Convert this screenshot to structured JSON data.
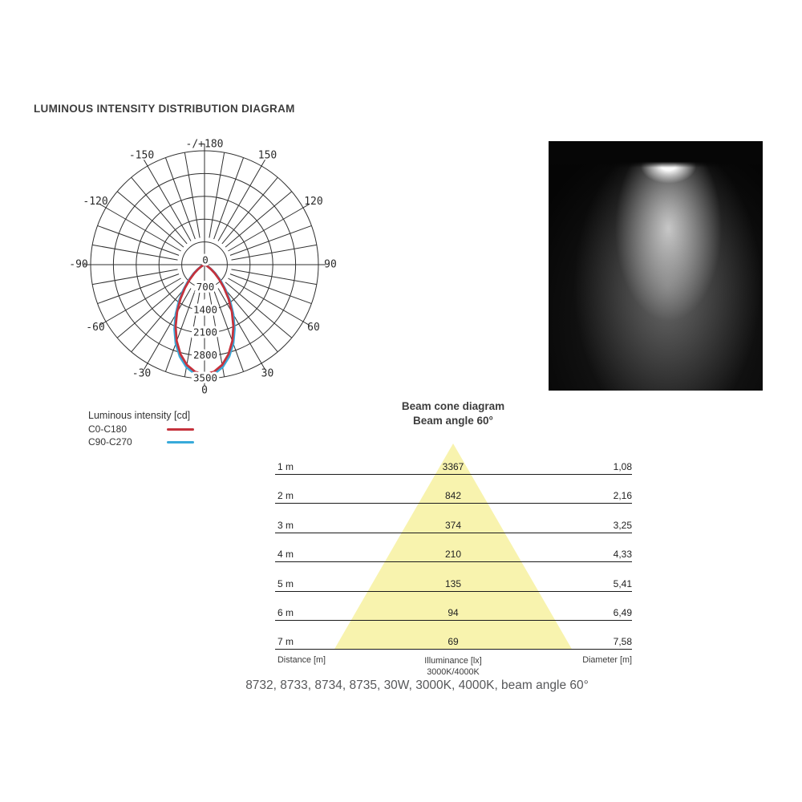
{
  "title": "LUMINOUS INTENSITY DISTRIBUTION DIAGRAM",
  "caption": "8732, 8733, 8734, 8735, 30W, 3000K, 4000K, beam angle 60°",
  "colors": {
    "curve_red": "#c5323c",
    "curve_blue": "#38aada",
    "grid": "#2f2f2f",
    "cone_yellow": "#f8f3ae",
    "line_dark": "#1b1b1b",
    "text_dark": "#3d3d3d",
    "caption_gray": "#57585a"
  },
  "chart_data": [
    {
      "type": "line",
      "name": "luminous-intensity-polar-diagram",
      "coordinate_system": "polar",
      "orientation": "0 degrees points down",
      "grid_angle_step_deg": 10,
      "angle_tick_step_deg": 30,
      "radial_max": 3500,
      "radial_ticks": [
        0,
        700,
        1400,
        2100,
        2800,
        3500
      ],
      "radial_tick_labels": [
        "0",
        "700",
        "1400",
        "2100",
        "2800",
        "3500"
      ],
      "angle_ticks": [
        {
          "angle": 0,
          "label": "0"
        },
        {
          "angle": 30,
          "label": "30"
        },
        {
          "angle": 60,
          "label": "60"
        },
        {
          "angle": 90,
          "label": "90"
        },
        {
          "angle": 120,
          "label": "120"
        },
        {
          "angle": 150,
          "label": "150"
        },
        {
          "angle": 180,
          "label": "-/+180"
        },
        {
          "angle": -30,
          "label": "-30"
        },
        {
          "angle": -60,
          "label": "-60"
        },
        {
          "angle": -90,
          "label": "-90"
        },
        {
          "angle": -120,
          "label": "-120"
        },
        {
          "angle": -150,
          "label": "-150"
        }
      ],
      "legend": {
        "title": "Luminous intensity [cd]",
        "entries": [
          {
            "name": "C0-C180",
            "color": "#c5323c"
          },
          {
            "name": "C90-C270",
            "color": "#38aada"
          }
        ]
      },
      "angles_deg": [
        -90,
        -85,
        -80,
        -75,
        -70,
        -65,
        -60,
        -55,
        -50,
        -45,
        -40,
        -35,
        -30,
        -25,
        -20,
        -15,
        -10,
        -5,
        0,
        5,
        10,
        15,
        20,
        25,
        30,
        35,
        40,
        45,
        50,
        55,
        60,
        65,
        70,
        75,
        80,
        85,
        90
      ],
      "series": [
        {
          "name": "C0-C180",
          "values": [
            0,
            0,
            1,
            5,
            20,
            54,
            121,
            234,
            404,
            638,
            937,
            1292,
            1684,
            2100,
            2498,
            2851,
            3128,
            3306,
            3367,
            3306,
            3128,
            2851,
            2498,
            2100,
            1684,
            1292,
            937,
            638,
            404,
            234,
            121,
            54,
            20,
            5,
            1,
            0,
            0
          ]
        },
        {
          "name": "C90-C270",
          "values": [
            0,
            0,
            2,
            6,
            25,
            65,
            141,
            266,
            449,
            697,
            1006,
            1370,
            1770,
            2182,
            2577,
            2924,
            3197,
            3370,
            3430,
            3370,
            3197,
            2924,
            2577,
            2182,
            1770,
            1370,
            1006,
            697,
            449,
            266,
            141,
            65,
            25,
            6,
            2,
            0,
            0
          ]
        }
      ]
    },
    {
      "type": "table",
      "name": "beam-cone-diagram",
      "title": "Beam cone diagram",
      "subtitle": "Beam angle 60°",
      "beam_angle_deg": 60,
      "columns": {
        "left": "Distance [m]",
        "center": "Illuminance [lx]",
        "center_sub": "3000K/4000K",
        "right": "Diameter [m]"
      },
      "rows": [
        {
          "distance": "1 m",
          "illuminance": "3367",
          "diameter": "1,08"
        },
        {
          "distance": "2 m",
          "illuminance": "842",
          "diameter": "2,16"
        },
        {
          "distance": "3 m",
          "illuminance": "374",
          "diameter": "3,25"
        },
        {
          "distance": "4 m",
          "illuminance": "210",
          "diameter": "4,33"
        },
        {
          "distance": "5 m",
          "illuminance": "135",
          "diameter": "5,41"
        },
        {
          "distance": "6 m",
          "illuminance": "94",
          "diameter": "6,49"
        },
        {
          "distance": "7 m",
          "illuminance": "69",
          "diameter": "7,58"
        }
      ],
      "numeric": {
        "distance_m": [
          1,
          2,
          3,
          4,
          5,
          6,
          7
        ],
        "illuminance_lx": [
          3367,
          842,
          374,
          210,
          135,
          94,
          69
        ],
        "diameter_m": [
          1.08,
          2.16,
          3.25,
          4.33,
          5.41,
          6.49,
          7.58
        ]
      }
    }
  ]
}
